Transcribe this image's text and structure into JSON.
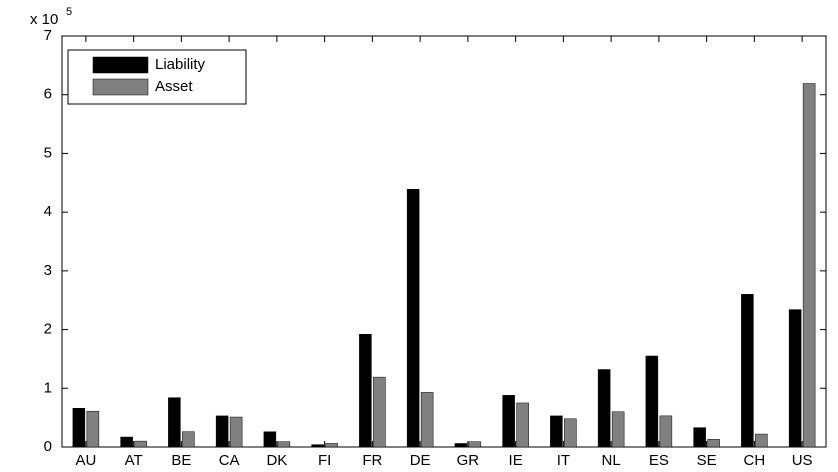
{
  "chart_data": {
    "type": "bar",
    "y_scale_text": "x 10",
    "y_scale_exponent": "5",
    "categories": [
      "AU",
      "AT",
      "BE",
      "CA",
      "DK",
      "FI",
      "FR",
      "DE",
      "GR",
      "IE",
      "IT",
      "NL",
      "ES",
      "SE",
      "CH",
      "US"
    ],
    "series": [
      {
        "name": "Liability",
        "color": "#000000",
        "values": [
          0.66,
          0.17,
          0.84,
          0.53,
          0.26,
          0.04,
          1.92,
          4.39,
          0.06,
          0.88,
          0.53,
          1.32,
          1.55,
          0.33,
          2.6,
          2.34
        ]
      },
      {
        "name": "Asset",
        "color": "#808080",
        "values": [
          0.61,
          0.1,
          0.26,
          0.51,
          0.09,
          0.06,
          1.19,
          0.93,
          0.09,
          0.75,
          0.48,
          0.6,
          0.53,
          0.13,
          0.22,
          6.19
        ]
      }
    ],
    "ylim": [
      0,
      7
    ],
    "yticks": [
      0,
      1,
      2,
      3,
      4,
      5,
      6,
      7
    ],
    "legend": "upper-left",
    "grid": false
  }
}
